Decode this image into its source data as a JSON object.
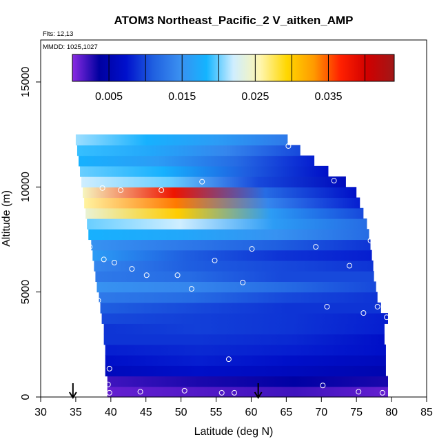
{
  "chart_data": {
    "type": "heatmap",
    "title": "ATOM3 Northeast_Pacific_2 V_aitken_AMP",
    "flights_note": "Flts: 12,13",
    "dates_note": "MMDD: 1025,1027",
    "xlabel": "Latitude (deg N)",
    "ylabel": "Altitude (m)",
    "xlim": [
      30,
      85
    ],
    "ylim": [
      0,
      17000
    ],
    "xticks": [
      30,
      35,
      40,
      45,
      50,
      55,
      60,
      65,
      70,
      75,
      80,
      85
    ],
    "yticks": [
      0,
      5000,
      10000,
      15000
    ],
    "colorbar": {
      "range": [
        0,
        0.044
      ],
      "tick_values": [
        0.005,
        0.015,
        0.025,
        0.035
      ],
      "tick_labels": [
        "0.005",
        "0.015",
        "0.025",
        "0.035"
      ],
      "divisions": [
        0.005,
        0.01,
        0.015,
        0.02,
        0.025,
        0.03,
        0.035,
        0.04
      ],
      "colors": [
        "#8a2be2",
        "#0000a0",
        "#0010cc",
        "#1f5fe0",
        "#3a8ff0",
        "#14b4ff",
        "#cfeeff",
        "#fff6b0",
        "#ffd700",
        "#ff9a00",
        "#ff2000",
        "#d00000",
        "#a01818"
      ]
    },
    "altitude_bins": [
      {
        "alt_lo": 0,
        "alt_hi": 500,
        "lat_min": 39.5,
        "lat_max": 79.5,
        "values": [
          0.001,
          0.0015,
          0.002,
          0.001
        ]
      },
      {
        "alt_lo": 500,
        "alt_hi": 1000,
        "lat_min": 39.5,
        "lat_max": 79.5,
        "values": [
          0.002,
          0.003,
          0.004,
          0.003
        ]
      },
      {
        "alt_lo": 1000,
        "alt_hi": 1500,
        "lat_min": 39.2,
        "lat_max": 79.2,
        "values": [
          0.006,
          0.007,
          0.006,
          0.005
        ]
      },
      {
        "alt_lo": 1500,
        "alt_hi": 2000,
        "lat_min": 39.2,
        "lat_max": 79.2,
        "values": [
          0.007,
          0.008,
          0.007,
          0.006
        ]
      },
      {
        "alt_lo": 2000,
        "alt_hi": 2500,
        "lat_min": 39.2,
        "lat_max": 79.2,
        "values": [
          0.008,
          0.0085,
          0.008,
          0.007
        ]
      },
      {
        "alt_lo": 2500,
        "alt_hi": 3000,
        "lat_min": 39.0,
        "lat_max": 79.0,
        "values": [
          0.009,
          0.009,
          0.0085,
          0.007
        ]
      },
      {
        "alt_lo": 3000,
        "alt_hi": 3500,
        "lat_min": 39.0,
        "lat_max": 79.0,
        "values": [
          0.009,
          0.0095,
          0.009,
          0.008
        ]
      },
      {
        "alt_lo": 3500,
        "alt_hi": 4000,
        "lat_min": 38.7,
        "lat_max": 79.5,
        "values": [
          0.01,
          0.0095,
          0.009,
          0.008
        ]
      },
      {
        "alt_lo": 4000,
        "alt_hi": 4500,
        "lat_min": 38.5,
        "lat_max": 78.5,
        "values": [
          0.011,
          0.01,
          0.009,
          0.009
        ]
      },
      {
        "alt_lo": 4500,
        "alt_hi": 5000,
        "lat_min": 38.3,
        "lat_max": 78.0,
        "values": [
          0.013,
          0.012,
          0.01,
          0.009
        ]
      },
      {
        "alt_lo": 5000,
        "alt_hi": 5500,
        "lat_min": 38.0,
        "lat_max": 77.8,
        "values": [
          0.015,
          0.014,
          0.012,
          0.01
        ]
      },
      {
        "alt_lo": 5500,
        "alt_hi": 6000,
        "lat_min": 37.8,
        "lat_max": 77.5,
        "values": [
          0.013,
          0.012,
          0.01,
          0.01
        ]
      },
      {
        "alt_lo": 6000,
        "alt_hi": 6500,
        "lat_min": 37.6,
        "lat_max": 77.4,
        "values": [
          0.014,
          0.011,
          0.01,
          0.009
        ]
      },
      {
        "alt_lo": 6500,
        "alt_hi": 7000,
        "lat_min": 37.4,
        "lat_max": 77.2,
        "values": [
          0.016,
          0.011,
          0.009,
          0.008
        ]
      },
      {
        "alt_lo": 7000,
        "alt_hi": 7500,
        "lat_min": 37.2,
        "lat_max": 77.0,
        "values": [
          0.015,
          0.013,
          0.011,
          0.009
        ]
      },
      {
        "alt_lo": 7500,
        "alt_hi": 8000,
        "lat_min": 36.8,
        "lat_max": 76.8,
        "values": [
          0.018,
          0.017,
          0.015,
          0.012
        ]
      },
      {
        "alt_lo": 8000,
        "alt_hi": 8500,
        "lat_min": 36.6,
        "lat_max": 76.5,
        "values": [
          0.02,
          0.022,
          0.016,
          0.012
        ]
      },
      {
        "alt_lo": 8500,
        "alt_hi": 9000,
        "lat_min": 36.4,
        "lat_max": 76.0,
        "values": [
          0.024,
          0.03,
          0.016,
          0.01
        ]
      },
      {
        "alt_lo": 9000,
        "alt_hi": 9500,
        "lat_min": 36.2,
        "lat_max": 75.5,
        "values": [
          0.026,
          0.034,
          0.014,
          0.008
        ]
      },
      {
        "alt_lo": 9500,
        "alt_hi": 10000,
        "lat_min": 36.0,
        "lat_max": 75.0,
        "values": [
          0.025,
          0.038,
          0.012,
          0.007
        ]
      },
      {
        "alt_lo": 10000,
        "alt_hi": 10500,
        "lat_min": 35.8,
        "lat_max": 73.5,
        "values": [
          0.022,
          0.02,
          0.01,
          0.006
        ]
      },
      {
        "alt_lo": 10500,
        "alt_hi": 11000,
        "lat_min": 35.6,
        "lat_max": 71.0,
        "values": [
          0.02,
          0.018,
          0.011,
          0.007
        ]
      },
      {
        "alt_lo": 11000,
        "alt_hi": 11500,
        "lat_min": 35.4,
        "lat_max": 69.0,
        "values": [
          0.018,
          0.016,
          0.012,
          0.008
        ]
      },
      {
        "alt_lo": 11500,
        "alt_hi": 12000,
        "lat_min": 35.2,
        "lat_max": 67.0,
        "values": [
          0.019,
          0.017,
          0.014,
          0.01
        ]
      },
      {
        "alt_lo": 12000,
        "alt_hi": 12500,
        "lat_min": 35.0,
        "lat_max": 65.2,
        "values": [
          0.021,
          0.018,
          0.016,
          0.013
        ]
      }
    ],
    "sample_points": [
      {
        "lat": 39.8,
        "alt": 200
      },
      {
        "lat": 39.6,
        "alt": 600
      },
      {
        "lat": 44.2,
        "alt": 250
      },
      {
        "lat": 50.5,
        "alt": 300
      },
      {
        "lat": 55.8,
        "alt": 200
      },
      {
        "lat": 57.6,
        "alt": 200
      },
      {
        "lat": 70.2,
        "alt": 550
      },
      {
        "lat": 75.3,
        "alt": 250
      },
      {
        "lat": 78.7,
        "alt": 200
      },
      {
        "lat": 39.8,
        "alt": 1350
      },
      {
        "lat": 56.8,
        "alt": 1800
      },
      {
        "lat": 79.3,
        "alt": 3800
      },
      {
        "lat": 76.0,
        "alt": 4000
      },
      {
        "lat": 78.0,
        "alt": 4300
      },
      {
        "lat": 70.8,
        "alt": 4300
      },
      {
        "lat": 38.2,
        "alt": 4600
      },
      {
        "lat": 51.5,
        "alt": 5150
      },
      {
        "lat": 58.8,
        "alt": 5450
      },
      {
        "lat": 45.1,
        "alt": 5800
      },
      {
        "lat": 49.5,
        "alt": 5800
      },
      {
        "lat": 43.0,
        "alt": 6100
      },
      {
        "lat": 40.5,
        "alt": 6400
      },
      {
        "lat": 39.0,
        "alt": 6550
      },
      {
        "lat": 54.8,
        "alt": 6500
      },
      {
        "lat": 74.0,
        "alt": 6250
      },
      {
        "lat": 37.0,
        "alt": 7150
      },
      {
        "lat": 60.1,
        "alt": 7050
      },
      {
        "lat": 69.2,
        "alt": 7150
      },
      {
        "lat": 77.0,
        "alt": 7450
      },
      {
        "lat": 38.8,
        "alt": 9950
      },
      {
        "lat": 41.4,
        "alt": 9850
      },
      {
        "lat": 47.2,
        "alt": 9850
      },
      {
        "lat": 53.0,
        "alt": 10250
      },
      {
        "lat": 71.8,
        "alt": 10300
      },
      {
        "lat": 65.3,
        "alt": 11950
      }
    ],
    "arrows": [
      {
        "lat": 34.6
      },
      {
        "lat": 61.0
      }
    ]
  }
}
